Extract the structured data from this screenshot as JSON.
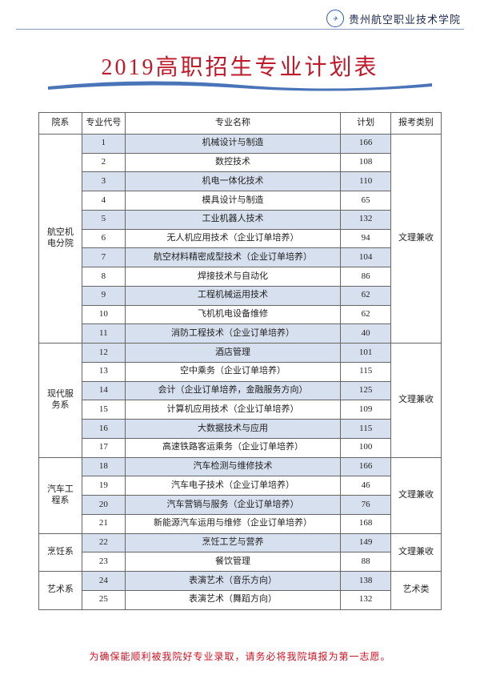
{
  "header": {
    "school_name": "贵州航空职业技术学院"
  },
  "title": "2019高职招生专业计划表",
  "table": {
    "headers": [
      "院系",
      "专业代号",
      "专业名称",
      "计划",
      "报考类别"
    ],
    "departments": [
      {
        "name": "航空机电分院",
        "category": "文理兼收",
        "rows": [
          {
            "code": "1",
            "major": "机械设计与制造",
            "plan": "166"
          },
          {
            "code": "2",
            "major": "数控技术",
            "plan": "108"
          },
          {
            "code": "3",
            "major": "机电一体化技术",
            "plan": "110"
          },
          {
            "code": "4",
            "major": "模具设计与制造",
            "plan": "65"
          },
          {
            "code": "5",
            "major": "工业机器人技术",
            "plan": "132"
          },
          {
            "code": "6",
            "major": "无人机应用技术（企业订单培养）",
            "plan": "94"
          },
          {
            "code": "7",
            "major": "航空材料精密成型技术（企业订单培养）",
            "plan": "104"
          },
          {
            "code": "8",
            "major": "焊接技术与自动化",
            "plan": "86"
          },
          {
            "code": "9",
            "major": "工程机械运用技术",
            "plan": "62"
          },
          {
            "code": "10",
            "major": "飞机机电设备维修",
            "plan": "62"
          },
          {
            "code": "11",
            "major": "消防工程技术（企业订单培养）",
            "plan": "40"
          }
        ]
      },
      {
        "name": "现代服务系",
        "category": "文理兼收",
        "rows": [
          {
            "code": "12",
            "major": "酒店管理",
            "plan": "101"
          },
          {
            "code": "13",
            "major": "空中乘务（企业订单培养）",
            "plan": "115"
          },
          {
            "code": "14",
            "major": "会计（企业订单培养，金融服务方向）",
            "plan": "125"
          },
          {
            "code": "15",
            "major": "计算机应用技术（企业订单培养）",
            "plan": "109"
          },
          {
            "code": "16",
            "major": "大数据技术与应用",
            "plan": "115"
          },
          {
            "code": "17",
            "major": "高速铁路客运乘务（企业订单培养）",
            "plan": "100"
          }
        ]
      },
      {
        "name": "汽车工程系",
        "category": "文理兼收",
        "rows": [
          {
            "code": "18",
            "major": "汽车检测与维修技术",
            "plan": "166"
          },
          {
            "code": "19",
            "major": "汽车电子技术（企业订单培养）",
            "plan": "46"
          },
          {
            "code": "20",
            "major": "汽车营销与服务（企业订单培养）",
            "plan": "76"
          },
          {
            "code": "21",
            "major": "新能源汽车运用与维修（企业订单培养）",
            "plan": "168"
          }
        ]
      },
      {
        "name": "烹饪系",
        "category": "文理兼收",
        "rows": [
          {
            "code": "22",
            "major": "烹饪工艺与营养",
            "plan": "149"
          },
          {
            "code": "23",
            "major": "餐饮管理",
            "plan": "88"
          }
        ]
      },
      {
        "name": "艺术系",
        "category": "艺术类",
        "rows": [
          {
            "code": "24",
            "major": "表演艺术（音乐方向）",
            "plan": "138"
          },
          {
            "code": "25",
            "major": "表演艺术（舞蹈方向）",
            "plan": "132"
          }
        ]
      }
    ]
  },
  "footer_note": "为确保能顺利被我院好专业录取，请务必将我院填报为第一志愿。",
  "colors": {
    "title": "#c01a2a",
    "row_odd": "#d7e0ee",
    "row_even": "#ffffff",
    "border": "#666666",
    "footer": "#d01020",
    "swoosh": "#4a74b8"
  }
}
